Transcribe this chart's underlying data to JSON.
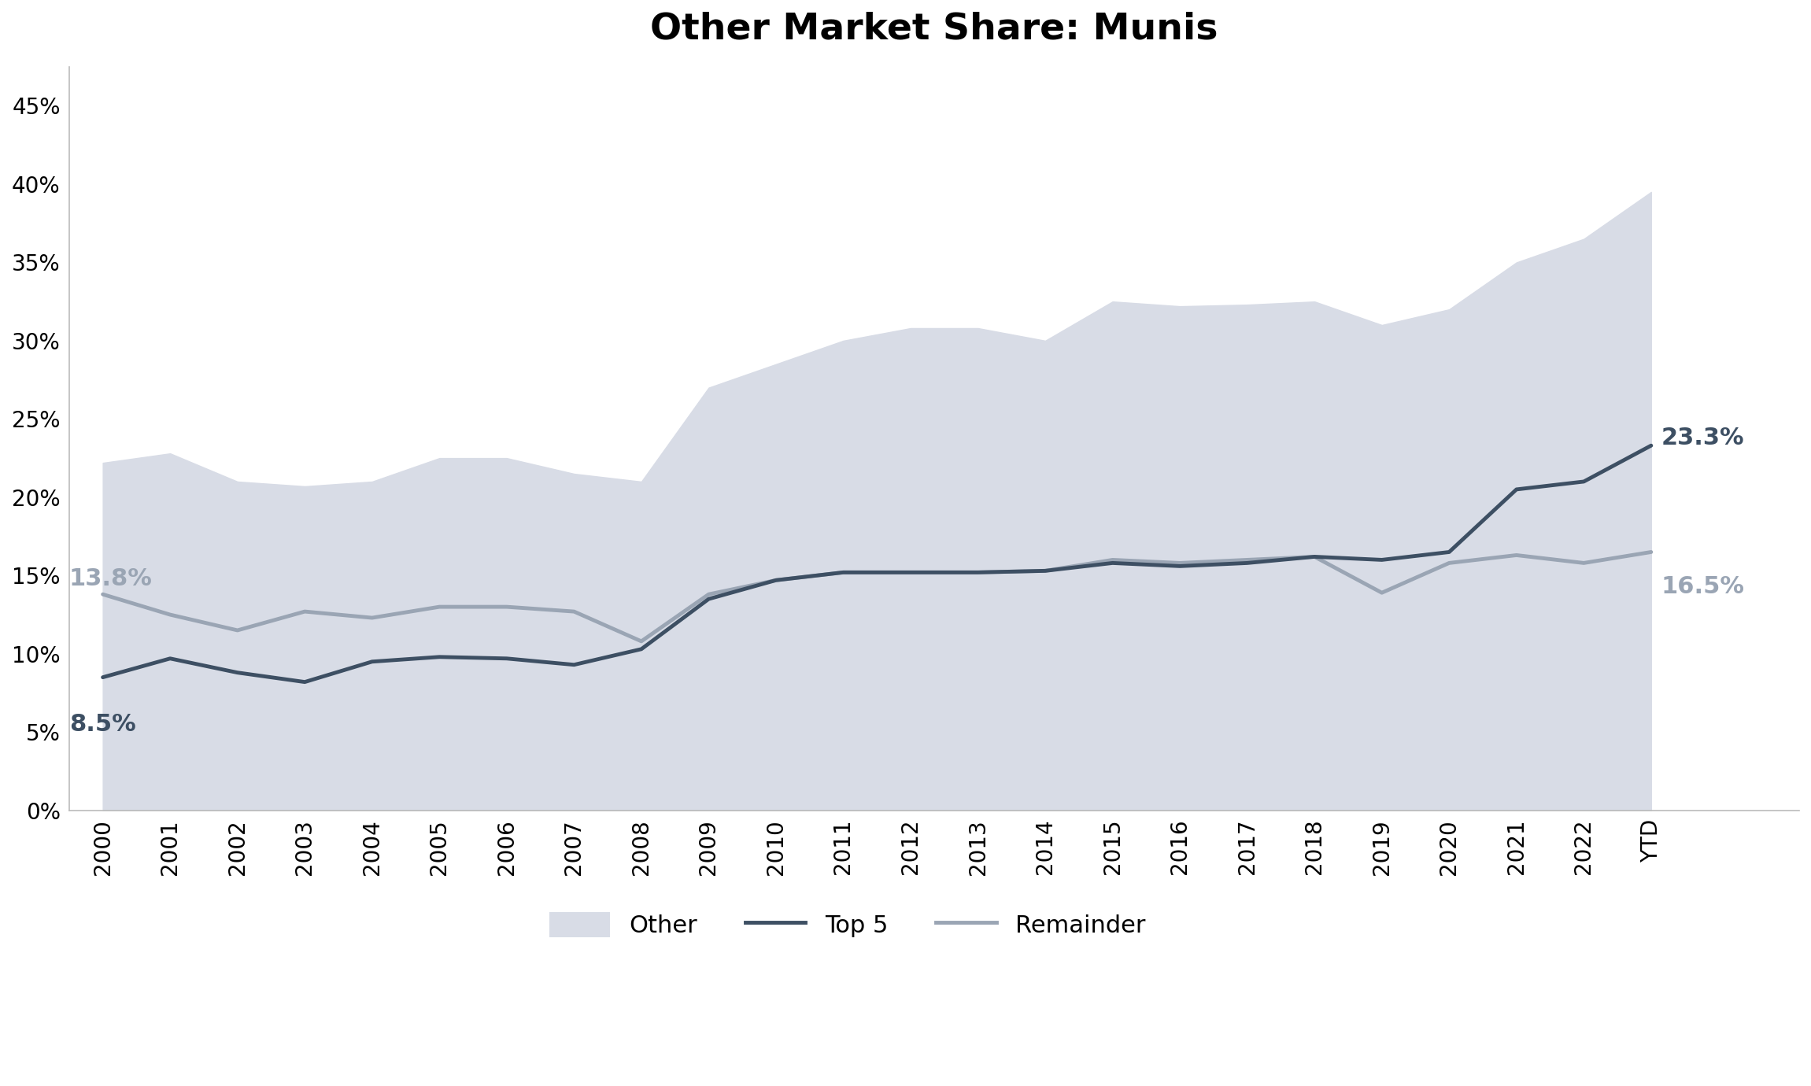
{
  "title": "Other Market Share: Munis",
  "categories": [
    "2000",
    "2001",
    "2002",
    "2003",
    "2004",
    "2005",
    "2006",
    "2007",
    "2008",
    "2009",
    "2010",
    "2011",
    "2012",
    "2013",
    "2014",
    "2015",
    "2016",
    "2017",
    "2018",
    "2019",
    "2020",
    "2021",
    "2022",
    "YTD"
  ],
  "top5": [
    0.085,
    0.097,
    0.088,
    0.082,
    0.095,
    0.098,
    0.097,
    0.093,
    0.103,
    0.135,
    0.147,
    0.152,
    0.152,
    0.152,
    0.153,
    0.158,
    0.156,
    0.158,
    0.162,
    0.16,
    0.165,
    0.205,
    0.21,
    0.233
  ],
  "remainder": [
    0.138,
    0.125,
    0.115,
    0.127,
    0.123,
    0.13,
    0.13,
    0.127,
    0.108,
    0.138,
    0.147,
    0.152,
    0.152,
    0.152,
    0.153,
    0.16,
    0.158,
    0.16,
    0.162,
    0.139,
    0.158,
    0.163,
    0.158,
    0.165
  ],
  "other": [
    0.222,
    0.228,
    0.21,
    0.207,
    0.21,
    0.225,
    0.225,
    0.215,
    0.21,
    0.27,
    0.285,
    0.3,
    0.308,
    0.308,
    0.3,
    0.325,
    0.322,
    0.323,
    0.325,
    0.31,
    0.32,
    0.35,
    0.365,
    0.395
  ],
  "top5_label": "8.5%",
  "remainder_label": "13.8%",
  "top5_end_label": "23.3%",
  "remainder_end_label": "16.5%",
  "top5_color": "#3d4f63",
  "remainder_color": "#9aa5b4",
  "other_fill_color": "#d8dce6",
  "ylim": [
    0,
    0.475
  ],
  "yticks": [
    0.0,
    0.05,
    0.1,
    0.15,
    0.2,
    0.25,
    0.3,
    0.35,
    0.4,
    0.45
  ],
  "background_color": "#ffffff",
  "legend_labels": [
    "Other",
    "Top 5",
    "Remainder"
  ]
}
